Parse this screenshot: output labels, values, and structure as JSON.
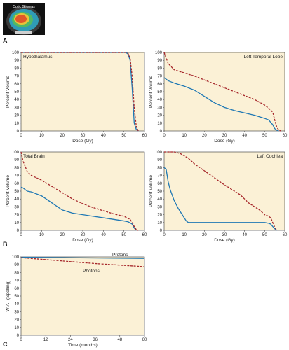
{
  "panel_labels": {
    "a": "A",
    "b": "B",
    "c": "C"
  },
  "figure_a": {
    "label": "Optic Gliomas"
  },
  "colors": {
    "protons": "#1f78b4",
    "photons": "#a6262a",
    "plot_bg": "#fbf1d6",
    "axis": "#333333"
  },
  "chart_data": [
    {
      "type": "line",
      "title": "Hypothalamus",
      "xlabel": "Dose (Gy)",
      "ylabel": "Percent Volume",
      "xlim": [
        0,
        60
      ],
      "ylim": [
        0,
        100
      ],
      "xticks": [
        "0",
        "10",
        "20",
        "30",
        "40",
        "50",
        "60"
      ],
      "yticks": [
        "0",
        "10",
        "20",
        "30",
        "40",
        "50",
        "60",
        "70",
        "80",
        "90",
        "100"
      ],
      "grid": false,
      "series": [
        {
          "style": "solid",
          "color": "#1f78b4",
          "x": [
            0,
            51,
            52,
            53,
            54,
            55,
            56,
            57
          ],
          "y": [
            100,
            100,
            98,
            90,
            55,
            10,
            2,
            0
          ]
        },
        {
          "style": "dashed",
          "color": "#a6262a",
          "x": [
            0,
            51,
            52,
            53,
            54,
            55,
            56,
            57
          ],
          "y": [
            100,
            100,
            99,
            93,
            70,
            30,
            6,
            0
          ]
        }
      ]
    },
    {
      "type": "line",
      "title": "Left Temporal Lobe",
      "xlabel": "Dose (Gy)",
      "ylabel": "Percent Volume",
      "xlim": [
        0,
        60
      ],
      "ylim": [
        0,
        100
      ],
      "xticks": [
        "0",
        "10",
        "20",
        "30",
        "40",
        "50",
        "60"
      ],
      "yticks": [
        "0",
        "10",
        "20",
        "30",
        "40",
        "50",
        "60",
        "70",
        "80",
        "90",
        "100"
      ],
      "grid": false,
      "series": [
        {
          "style": "solid",
          "color": "#1f78b4",
          "x": [
            0,
            2,
            5,
            10,
            15,
            20,
            25,
            30,
            35,
            40,
            45,
            50,
            52,
            54,
            55,
            56,
            57
          ],
          "y": [
            68,
            64,
            61,
            57,
            52,
            44,
            36,
            30,
            26,
            23,
            20,
            16,
            14,
            8,
            3,
            1,
            0
          ]
        },
        {
          "style": "dashed",
          "color": "#a6262a",
          "x": [
            0,
            2,
            5,
            10,
            15,
            20,
            25,
            30,
            35,
            40,
            45,
            50,
            52,
            54,
            55,
            56,
            57,
            58
          ],
          "y": [
            100,
            86,
            78,
            74,
            70,
            65,
            60,
            55,
            50,
            45,
            40,
            33,
            29,
            24,
            14,
            5,
            1,
            0
          ]
        }
      ]
    },
    {
      "type": "line",
      "title": "Total Brain",
      "xlabel": "Dose (Gy)",
      "ylabel": "Percent Volume",
      "xlim": [
        0,
        60
      ],
      "ylim": [
        0,
        100
      ],
      "xticks": [
        "0",
        "10",
        "20",
        "30",
        "40",
        "50",
        "60"
      ],
      "yticks": [
        "0",
        "10",
        "20",
        "30",
        "40",
        "50",
        "60",
        "70",
        "80",
        "90",
        "100"
      ],
      "grid": false,
      "series": [
        {
          "style": "solid",
          "color": "#1f78b4",
          "x": [
            0,
            1,
            3,
            5,
            10,
            15,
            20,
            25,
            30,
            35,
            40,
            45,
            50,
            52,
            54,
            55,
            56
          ],
          "y": [
            55,
            54,
            50,
            49,
            44,
            35,
            26,
            22,
            20,
            18,
            16,
            14,
            12,
            11,
            8,
            3,
            0
          ]
        },
        {
          "style": "dashed",
          "color": "#a6262a",
          "x": [
            0,
            1,
            3,
            5,
            10,
            15,
            20,
            25,
            30,
            35,
            40,
            45,
            50,
            53,
            54,
            55,
            56,
            57
          ],
          "y": [
            100,
            88,
            75,
            70,
            64,
            56,
            48,
            40,
            34,
            29,
            25,
            21,
            18,
            14,
            10,
            5,
            1,
            0
          ]
        }
      ]
    },
    {
      "type": "line",
      "title": "Left Cochlea",
      "xlabel": "Dose (Gy)",
      "ylabel": "Percent Volume",
      "xlim": [
        0,
        60
      ],
      "ylim": [
        0,
        100
      ],
      "xticks": [
        "0",
        "10",
        "20",
        "30",
        "40",
        "50",
        "60"
      ],
      "yticks": [
        "0",
        "10",
        "20",
        "30",
        "40",
        "50",
        "60",
        "70",
        "80",
        "90",
        "100"
      ],
      "grid": false,
      "series": [
        {
          "style": "solid",
          "color": "#1f78b4",
          "x": [
            0,
            1,
            2,
            3,
            5,
            7,
            9,
            11,
            12,
            15,
            50,
            52,
            53,
            54,
            55,
            56
          ],
          "y": [
            80,
            78,
            62,
            52,
            38,
            28,
            20,
            12,
            10,
            10,
            10,
            9,
            8,
            5,
            2,
            0
          ]
        },
        {
          "style": "dashed",
          "color": "#a6262a",
          "x": [
            0,
            5,
            8,
            12,
            15,
            20,
            25,
            30,
            35,
            38,
            40,
            42,
            45,
            48,
            50,
            52,
            53,
            54,
            55,
            56
          ],
          "y": [
            100,
            100,
            98,
            92,
            85,
            76,
            67,
            58,
            50,
            45,
            40,
            35,
            30,
            25,
            20,
            18,
            16,
            10,
            4,
            0
          ]
        }
      ]
    },
    {
      "type": "line",
      "title": "",
      "xlabel": "Time (months)",
      "ylabel": "WIAT (Spelling)",
      "xlim": [
        0,
        60
      ],
      "ylim": [
        0,
        100
      ],
      "xticks": [
        "0",
        "12",
        "24",
        "36",
        "48",
        "60"
      ],
      "yticks": [
        "0",
        "10",
        "20",
        "30",
        "40",
        "50",
        "60",
        "70",
        "80",
        "90",
        "100"
      ],
      "grid": false,
      "series": [
        {
          "name": "Protons",
          "style": "solid",
          "color": "#1f78b4",
          "x": [
            0,
            60
          ],
          "y": [
            99.5,
            98
          ]
        },
        {
          "name": "Photons",
          "style": "dashed",
          "color": "#a6262a",
          "x": [
            0,
            12,
            24,
            36,
            48,
            60
          ],
          "y": [
            99,
            96.5,
            94,
            91.5,
            89.5,
            87.5
          ]
        }
      ]
    }
  ]
}
